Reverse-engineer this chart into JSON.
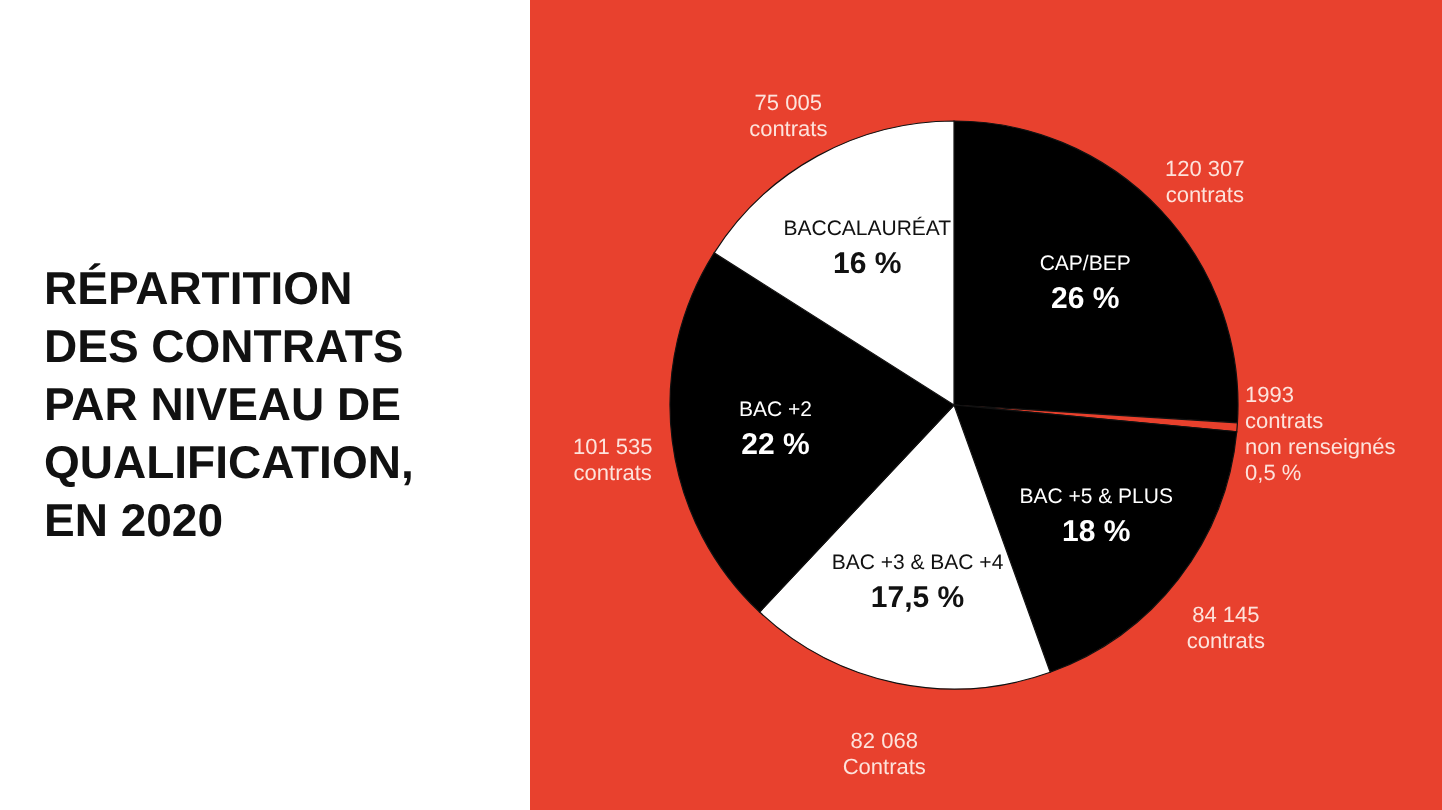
{
  "chart_data": {
    "type": "pie",
    "title": "RÉPARTITION DES CONTRATS PAR NIVEAU DE QUALIFICATION, EN 2020",
    "categories": [
      "CAP/BEP",
      "non renseignés",
      "BAC +5 & PLUS",
      "BAC +3 & BAC +4",
      "BAC +2",
      "BACCALAURÉAT"
    ],
    "values": [
      26,
      0.5,
      18,
      17.5,
      22,
      16
    ],
    "colors": [
      "#000000",
      "#e8402c",
      "#000000",
      "#ffffff",
      "#000000",
      "#ffffff"
    ],
    "value_labels": [
      "26 %",
      "0,5 %",
      "18 %",
      "17,5 %",
      "22 %",
      "16 %"
    ],
    "annotations": [
      "120 307\ncontrats",
      "1993\ncontrats",
      "84 145\ncontrats",
      "82 068\nContrats",
      "101 535\ncontrats",
      "75 005\ncontrats"
    ]
  }
}
